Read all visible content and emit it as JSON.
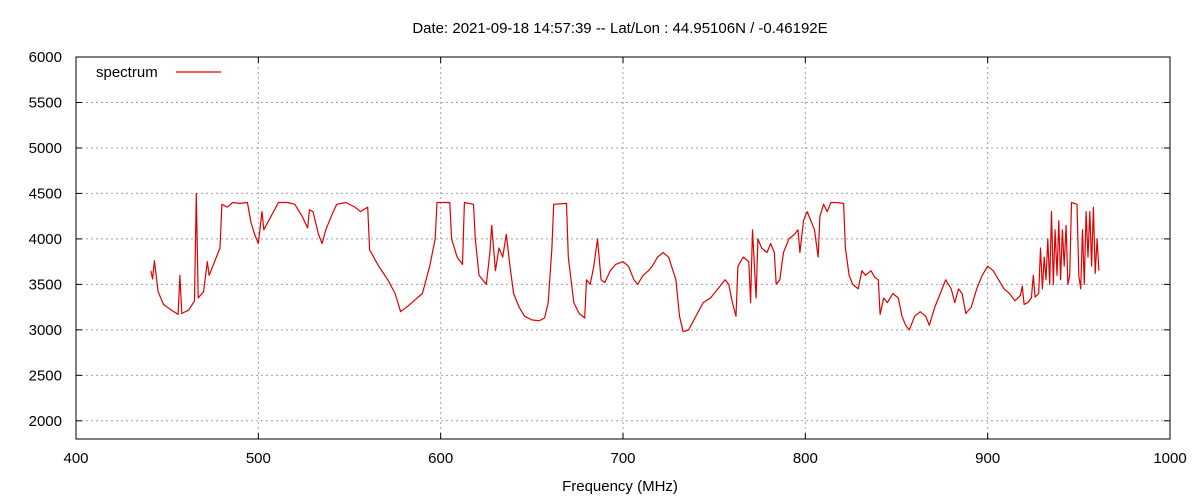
{
  "chart_data": {
    "type": "line",
    "title": "Date: 2021-09-18 14:57:39  --  Lat/Lon : 44.95106N / -0.46192E",
    "xlabel": "Frequency (MHz)",
    "ylabel": "",
    "xlim": [
      400,
      1000
    ],
    "ylim": [
      1800,
      6000
    ],
    "x_ticks": [
      400,
      500,
      600,
      700,
      800,
      900,
      1000
    ],
    "y_ticks": [
      2000,
      2500,
      3000,
      3500,
      4000,
      4500,
      5000,
      5500,
      6000
    ],
    "grid": true,
    "legend": {
      "position": "top-left"
    },
    "series": [
      {
        "name": "spectrum",
        "color": "#e00000",
        "points": [
          [
            441,
            3650
          ],
          [
            442,
            3560
          ],
          [
            443,
            3760
          ],
          [
            445,
            3420
          ],
          [
            448,
            3280
          ],
          [
            452,
            3220
          ],
          [
            456,
            3170
          ],
          [
            457,
            3600
          ],
          [
            458,
            3180
          ],
          [
            462,
            3220
          ],
          [
            465,
            3320
          ],
          [
            466,
            4500
          ],
          [
            467,
            3350
          ],
          [
            470,
            3420
          ],
          [
            472,
            3750
          ],
          [
            473,
            3600
          ],
          [
            476,
            3750
          ],
          [
            479,
            3900
          ],
          [
            480,
            4380
          ],
          [
            483,
            4350
          ],
          [
            486,
            4400
          ],
          [
            490,
            4390
          ],
          [
            494,
            4400
          ],
          [
            496,
            4180
          ],
          [
            498,
            4050
          ],
          [
            500,
            3950
          ],
          [
            502,
            4300
          ],
          [
            503,
            4100
          ],
          [
            507,
            4250
          ],
          [
            511,
            4400
          ],
          [
            516,
            4400
          ],
          [
            520,
            4380
          ],
          [
            524,
            4250
          ],
          [
            527,
            4120
          ],
          [
            528,
            4320
          ],
          [
            530,
            4300
          ],
          [
            533,
            4050
          ],
          [
            535,
            3950
          ],
          [
            537,
            4100
          ],
          [
            540,
            4250
          ],
          [
            543,
            4380
          ],
          [
            548,
            4400
          ],
          [
            553,
            4350
          ],
          [
            556,
            4300
          ],
          [
            560,
            4350
          ],
          [
            561,
            3880
          ],
          [
            566,
            3700
          ],
          [
            571,
            3550
          ],
          [
            575,
            3400
          ],
          [
            578,
            3200
          ],
          [
            582,
            3260
          ],
          [
            586,
            3330
          ],
          [
            590,
            3400
          ],
          [
            594,
            3700
          ],
          [
            597,
            4000
          ],
          [
            598,
            4400
          ],
          [
            605,
            4400
          ],
          [
            606,
            4000
          ],
          [
            609,
            3800
          ],
          [
            612,
            3720
          ],
          [
            613,
            4400
          ],
          [
            618,
            4380
          ],
          [
            619,
            4000
          ],
          [
            621,
            3600
          ],
          [
            623,
            3550
          ],
          [
            625,
            3500
          ],
          [
            627,
            3850
          ],
          [
            628,
            4150
          ],
          [
            630,
            3650
          ],
          [
            632,
            3900
          ],
          [
            634,
            3800
          ],
          [
            636,
            4050
          ],
          [
            638,
            3700
          ],
          [
            640,
            3400
          ],
          [
            643,
            3250
          ],
          [
            646,
            3150
          ],
          [
            650,
            3110
          ],
          [
            654,
            3100
          ],
          [
            657,
            3130
          ],
          [
            659,
            3300
          ],
          [
            661,
            3900
          ],
          [
            662,
            4380
          ],
          [
            669,
            4390
          ],
          [
            670,
            3800
          ],
          [
            673,
            3300
          ],
          [
            676,
            3180
          ],
          [
            679,
            3130
          ],
          [
            680,
            3550
          ],
          [
            682,
            3500
          ],
          [
            684,
            3700
          ],
          [
            686,
            4000
          ],
          [
            688,
            3550
          ],
          [
            690,
            3520
          ],
          [
            693,
            3650
          ],
          [
            696,
            3720
          ],
          [
            700,
            3750
          ],
          [
            703,
            3700
          ],
          [
            706,
            3550
          ],
          [
            708,
            3500
          ],
          [
            711,
            3600
          ],
          [
            714,
            3650
          ],
          [
            716,
            3700
          ],
          [
            719,
            3800
          ],
          [
            722,
            3850
          ],
          [
            725,
            3800
          ],
          [
            729,
            3550
          ],
          [
            731,
            3150
          ],
          [
            733,
            2980
          ],
          [
            736,
            3000
          ],
          [
            740,
            3150
          ],
          [
            744,
            3300
          ],
          [
            748,
            3350
          ],
          [
            752,
            3450
          ],
          [
            756,
            3550
          ],
          [
            758,
            3500
          ],
          [
            760,
            3300
          ],
          [
            762,
            3150
          ],
          [
            763,
            3700
          ],
          [
            766,
            3800
          ],
          [
            769,
            3750
          ],
          [
            770,
            3300
          ],
          [
            771,
            4100
          ],
          [
            773,
            3350
          ],
          [
            774,
            4000
          ],
          [
            776,
            3900
          ],
          [
            779,
            3850
          ],
          [
            781,
            3950
          ],
          [
            783,
            3850
          ],
          [
            784,
            3500
          ],
          [
            786,
            3550
          ],
          [
            788,
            3850
          ],
          [
            791,
            4000
          ],
          [
            794,
            4050
          ],
          [
            796,
            4100
          ],
          [
            797,
            3850
          ],
          [
            799,
            4200
          ],
          [
            801,
            4300
          ],
          [
            803,
            4200
          ],
          [
            805,
            4100
          ],
          [
            807,
            3800
          ],
          [
            808,
            4250
          ],
          [
            810,
            4380
          ],
          [
            812,
            4300
          ],
          [
            814,
            4400
          ],
          [
            817,
            4400
          ],
          [
            821,
            4390
          ],
          [
            822,
            3900
          ],
          [
            824,
            3600
          ],
          [
            826,
            3500
          ],
          [
            829,
            3450
          ],
          [
            831,
            3650
          ],
          [
            833,
            3600
          ],
          [
            836,
            3650
          ],
          [
            838,
            3580
          ],
          [
            840,
            3550
          ],
          [
            841,
            3170
          ],
          [
            843,
            3350
          ],
          [
            845,
            3300
          ],
          [
            848,
            3400
          ],
          [
            851,
            3350
          ],
          [
            853,
            3150
          ],
          [
            855,
            3050
          ],
          [
            857,
            3000
          ],
          [
            860,
            3150
          ],
          [
            863,
            3200
          ],
          [
            866,
            3150
          ],
          [
            868,
            3050
          ],
          [
            871,
            3250
          ],
          [
            874,
            3400
          ],
          [
            877,
            3550
          ],
          [
            880,
            3450
          ],
          [
            882,
            3300
          ],
          [
            884,
            3450
          ],
          [
            886,
            3400
          ],
          [
            888,
            3180
          ],
          [
            891,
            3250
          ],
          [
            894,
            3450
          ],
          [
            897,
            3600
          ],
          [
            900,
            3700
          ],
          [
            903,
            3650
          ],
          [
            906,
            3550
          ],
          [
            909,
            3450
          ],
          [
            912,
            3400
          ],
          [
            915,
            3320
          ],
          [
            918,
            3380
          ],
          [
            919,
            3480
          ],
          [
            920,
            3280
          ],
          [
            922,
            3300
          ],
          [
            924,
            3350
          ],
          [
            925,
            3600
          ],
          [
            926,
            3360
          ],
          [
            928,
            3400
          ],
          [
            929,
            3900
          ],
          [
            930,
            3450
          ],
          [
            931,
            3800
          ],
          [
            932,
            3550
          ],
          [
            933,
            4000
          ],
          [
            934,
            3500
          ],
          [
            935,
            4300
          ],
          [
            936,
            3500
          ],
          [
            937,
            4100
          ],
          [
            938,
            3600
          ],
          [
            939,
            4200
          ],
          [
            940,
            3550
          ],
          [
            941,
            4100
          ],
          [
            942,
            3700
          ],
          [
            943,
            4150
          ],
          [
            944,
            3500
          ],
          [
            945,
            3600
          ],
          [
            946,
            4400
          ],
          [
            949,
            4380
          ],
          [
            950,
            3600
          ],
          [
            951,
            3450
          ],
          [
            952,
            4100
          ],
          [
            953,
            3500
          ],
          [
            954,
            4300
          ],
          [
            955,
            3800
          ],
          [
            956,
            4300
          ],
          [
            957,
            3700
          ],
          [
            958,
            4350
          ],
          [
            959,
            3620
          ],
          [
            960,
            4000
          ],
          [
            961,
            3650
          ]
        ]
      }
    ]
  }
}
